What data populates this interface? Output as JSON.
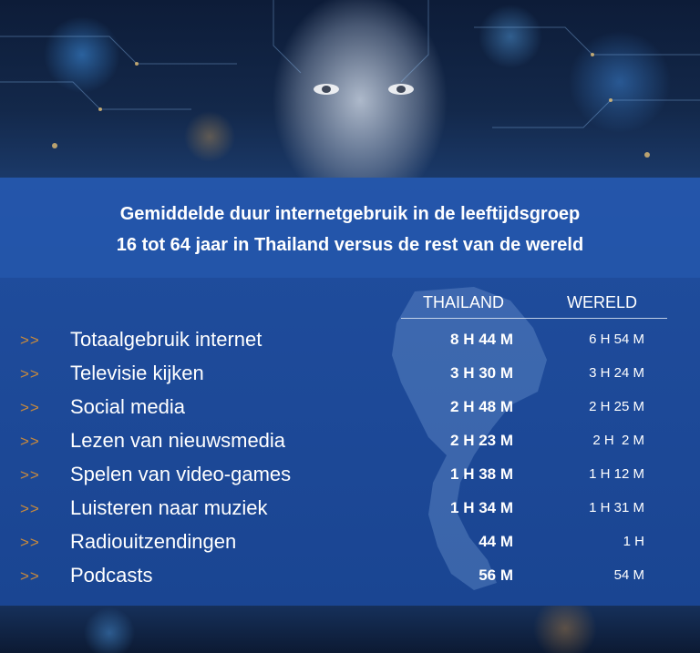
{
  "title": {
    "line1": "Gemiddelde duur internetgebruik in de leeftijdsgroep",
    "line2": "16 tot 64 jaar in Thailand versus de rest van de wereld"
  },
  "columns": {
    "thailand": "THAILAND",
    "world": "WERELD"
  },
  "arrow": ">>",
  "rows": [
    {
      "label": "Totaalgebruik internet",
      "thailand": "8 H 44 M",
      "world": "6 H 54 M"
    },
    {
      "label": "Televisie kijken",
      "thailand": "3 H 30 M",
      "world": "3 H 24 M"
    },
    {
      "label": "Social media",
      "thailand": "2 H 48 M",
      "world": "2 H 25 M"
    },
    {
      "label": "Lezen van nieuwsmedia",
      "thailand": "2 H 23 M",
      "world": "2 H  2 M"
    },
    {
      "label": "Spelen van video-games",
      "thailand": "1 H 38 M",
      "world": "1 H 12 M"
    },
    {
      "label": "Luisteren naar muziek",
      "thailand": "1 H 34 M",
      "world": "1 H 31 M"
    },
    {
      "label": "Radiouitzendingen",
      "thailand": "44 M",
      "world": "1 H"
    },
    {
      "label": "Podcasts",
      "thailand": "56 M",
      "world": "54 M"
    }
  ],
  "colors": {
    "panel": "#1f4c9c",
    "arrow": "#c98a3c",
    "text": "#ffffff"
  },
  "icons": {
    "background": "ai-face-circuit-image",
    "map": "thailand-map-silhouette"
  }
}
